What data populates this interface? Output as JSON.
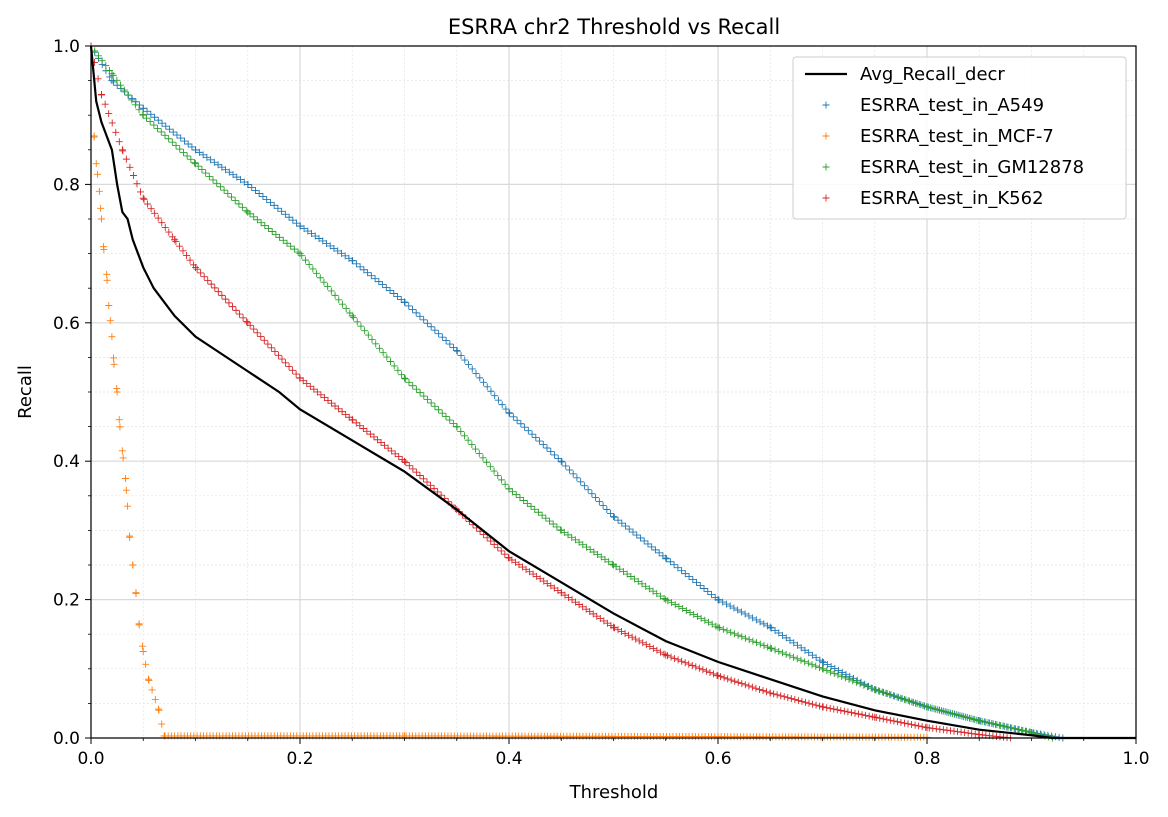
{
  "chart_data": {
    "type": "scatter",
    "title": "ESRRA chr2 Threshold vs Recall",
    "xlabel": "Threshold",
    "ylabel": "Recall",
    "xlim": [
      0.0,
      1.0
    ],
    "ylim": [
      0.0,
      1.0
    ],
    "xticks": [
      "0.0",
      "0.2",
      "0.4",
      "0.6",
      "0.8",
      "1.0"
    ],
    "yticks": [
      "0.0",
      "0.2",
      "0.4",
      "0.6",
      "0.8",
      "1.0"
    ],
    "grid": true,
    "legend_position": "top-right",
    "line": {
      "name": "Avg_Recall_decr",
      "color": "#000000",
      "points": [
        [
          0.0,
          1.0
        ],
        [
          0.005,
          0.92
        ],
        [
          0.01,
          0.89
        ],
        [
          0.015,
          0.87
        ],
        [
          0.02,
          0.85
        ],
        [
          0.025,
          0.8
        ],
        [
          0.03,
          0.76
        ],
        [
          0.035,
          0.75
        ],
        [
          0.04,
          0.72
        ],
        [
          0.05,
          0.68
        ],
        [
          0.06,
          0.65
        ],
        [
          0.07,
          0.63
        ],
        [
          0.08,
          0.61
        ],
        [
          0.1,
          0.58
        ],
        [
          0.12,
          0.56
        ],
        [
          0.15,
          0.53
        ],
        [
          0.18,
          0.5
        ],
        [
          0.2,
          0.475
        ],
        [
          0.25,
          0.43
        ],
        [
          0.3,
          0.385
        ],
        [
          0.35,
          0.33
        ],
        [
          0.4,
          0.27
        ],
        [
          0.45,
          0.225
        ],
        [
          0.5,
          0.18
        ],
        [
          0.55,
          0.14
        ],
        [
          0.6,
          0.11
        ],
        [
          0.65,
          0.085
        ],
        [
          0.7,
          0.06
        ],
        [
          0.75,
          0.04
        ],
        [
          0.8,
          0.025
        ],
        [
          0.85,
          0.012
        ],
        [
          0.9,
          0.004
        ],
        [
          0.92,
          0.0
        ],
        [
          1.0,
          0.0
        ]
      ]
    },
    "series": [
      {
        "name": "ESRRA_test_in_A549",
        "color": "#1f77b4",
        "points": [
          [
            0.0,
            1.0
          ],
          [
            0.02,
            0.95
          ],
          [
            0.05,
            0.91
          ],
          [
            0.1,
            0.85
          ],
          [
            0.15,
            0.8
          ],
          [
            0.2,
            0.74
          ],
          [
            0.25,
            0.69
          ],
          [
            0.3,
            0.63
          ],
          [
            0.35,
            0.56
          ],
          [
            0.4,
            0.47
          ],
          [
            0.45,
            0.4
          ],
          [
            0.5,
            0.32
          ],
          [
            0.55,
            0.26
          ],
          [
            0.6,
            0.2
          ],
          [
            0.65,
            0.16
          ],
          [
            0.7,
            0.11
          ],
          [
            0.75,
            0.07
          ],
          [
            0.8,
            0.045
          ],
          [
            0.85,
            0.025
          ],
          [
            0.9,
            0.008
          ],
          [
            0.93,
            0.0
          ]
        ]
      },
      {
        "name": "ESRRA_test_in_MCF-7",
        "color": "#ff7f0e",
        "points": [
          [
            0.0,
            1.0
          ],
          [
            0.003,
            0.87
          ],
          [
            0.005,
            0.83
          ],
          [
            0.008,
            0.79
          ],
          [
            0.01,
            0.75
          ],
          [
            0.012,
            0.71
          ],
          [
            0.015,
            0.67
          ],
          [
            0.017,
            0.625
          ],
          [
            0.02,
            0.58
          ],
          [
            0.022,
            0.54
          ],
          [
            0.025,
            0.5
          ],
          [
            0.027,
            0.46
          ],
          [
            0.03,
            0.415
          ],
          [
            0.033,
            0.375
          ],
          [
            0.035,
            0.335
          ],
          [
            0.037,
            0.29
          ],
          [
            0.04,
            0.25
          ],
          [
            0.043,
            0.21
          ],
          [
            0.046,
            0.165
          ],
          [
            0.05,
            0.125
          ],
          [
            0.055,
            0.085
          ],
          [
            0.065,
            0.04
          ],
          [
            0.07,
            0.003
          ],
          [
            0.3,
            0.003
          ],
          [
            0.6,
            0.002
          ],
          [
            0.8,
            0.001
          ]
        ]
      },
      {
        "name": "ESRRA_test_in_GM12878",
        "color": "#2ca02c",
        "points": [
          [
            0.0,
            1.0
          ],
          [
            0.02,
            0.96
          ],
          [
            0.05,
            0.9
          ],
          [
            0.1,
            0.83
          ],
          [
            0.15,
            0.76
          ],
          [
            0.2,
            0.7
          ],
          [
            0.25,
            0.61
          ],
          [
            0.3,
            0.52
          ],
          [
            0.35,
            0.45
          ],
          [
            0.4,
            0.36
          ],
          [
            0.45,
            0.3
          ],
          [
            0.5,
            0.25
          ],
          [
            0.55,
            0.2
          ],
          [
            0.6,
            0.16
          ],
          [
            0.65,
            0.13
          ],
          [
            0.7,
            0.1
          ],
          [
            0.75,
            0.07
          ],
          [
            0.8,
            0.045
          ],
          [
            0.85,
            0.025
          ],
          [
            0.9,
            0.008
          ],
          [
            0.92,
            0.0
          ]
        ]
      },
      {
        "name": "ESRRA_test_in_K562",
        "color": "#d62728",
        "points": [
          [
            0.0,
            1.0
          ],
          [
            0.01,
            0.93
          ],
          [
            0.03,
            0.85
          ],
          [
            0.05,
            0.78
          ],
          [
            0.08,
            0.72
          ],
          [
            0.1,
            0.68
          ],
          [
            0.15,
            0.6
          ],
          [
            0.2,
            0.52
          ],
          [
            0.25,
            0.46
          ],
          [
            0.3,
            0.4
          ],
          [
            0.35,
            0.33
          ],
          [
            0.4,
            0.26
          ],
          [
            0.45,
            0.21
          ],
          [
            0.5,
            0.16
          ],
          [
            0.55,
            0.12
          ],
          [
            0.6,
            0.09
          ],
          [
            0.65,
            0.065
          ],
          [
            0.7,
            0.045
          ],
          [
            0.75,
            0.03
          ],
          [
            0.8,
            0.015
          ],
          [
            0.85,
            0.005
          ],
          [
            0.88,
            0.0
          ]
        ]
      }
    ]
  }
}
